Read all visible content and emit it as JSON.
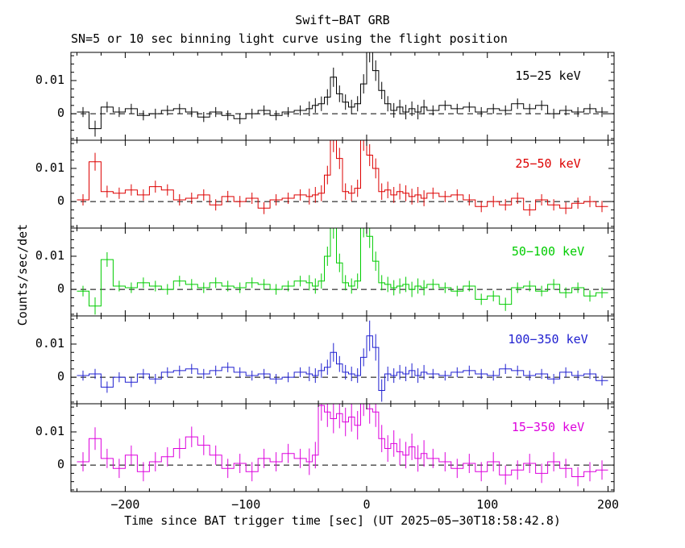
{
  "chart_data": {
    "type": "line",
    "style": "step-histogram-light-curve-with-error-bars",
    "title": "Swift−BAT GRB",
    "subtitle": "SN=5 or 10 sec binning light curve using the flight position",
    "xlabel": "Time since BAT trigger time [sec] (UT 2025−05−30T18:58:42.8)",
    "ylabel": "Counts/sec/det",
    "xlim": [
      -245,
      205
    ],
    "ylim": [
      -0.008,
      0.0185
    ],
    "x_ticks": [
      -200,
      -100,
      0,
      100,
      200
    ],
    "x_minor_step": 20,
    "y_ticks": [
      0,
      0.01
    ],
    "y_tick_labels": [
      "0",
      "0.01"
    ],
    "y_minor_step": 0.0025,
    "y_scale": 0.001,
    "zero_line": {
      "value": 0,
      "style": "dashed",
      "color": "#000000"
    },
    "bin_edges_sec": [
      -240,
      -230,
      -220,
      -210,
      -200,
      -190,
      -180,
      -170,
      -160,
      -150,
      -140,
      -130,
      -120,
      -110,
      -100,
      -90,
      -80,
      -70,
      -60,
      -50,
      -45,
      -40,
      -35,
      -30,
      -25,
      -20,
      -15,
      -10,
      -5,
      0,
      5,
      10,
      15,
      20,
      25,
      30,
      35,
      40,
      45,
      50,
      60,
      70,
      80,
      90,
      100,
      110,
      120,
      130,
      140,
      150,
      160,
      170,
      180,
      190,
      200
    ],
    "panels": [
      {
        "label": "15−25 keV",
        "color": "#000000",
        "rate_milli": [
          0.5,
          -4.5,
          2,
          0.5,
          1.5,
          -0.5,
          0,
          1,
          1.5,
          0.5,
          -1,
          0.5,
          -0.5,
          -1.5,
          0,
          1,
          -0.5,
          0.5,
          1,
          1.5,
          2.5,
          3,
          5,
          11,
          6,
          3.5,
          2,
          3,
          9,
          19,
          13,
          7,
          3,
          1,
          2,
          0.5,
          1.5,
          0.5,
          2,
          1,
          2.5,
          1.5,
          2,
          0.5,
          1.5,
          1,
          3,
          1.5,
          2.5,
          0,
          1,
          0.5,
          1.5,
          0.5
        ],
        "err_milli": [
          1.5,
          2.4,
          1.6,
          1.5,
          1.5,
          1.5,
          1.5,
          1.5,
          1.5,
          1.5,
          1.5,
          1.5,
          1.5,
          1.6,
          1.5,
          1.5,
          1.5,
          1.5,
          1.5,
          2.2,
          2.2,
          2.2,
          2.4,
          2.9,
          2.5,
          2.3,
          2.2,
          2.3,
          2.9,
          3.5,
          3.1,
          2.6,
          2.3,
          2.2,
          2.2,
          2.2,
          2.2,
          2.2,
          2.2,
          1.5,
          1.5,
          1.5,
          1.5,
          1.5,
          1.5,
          1.5,
          1.6,
          1.5,
          1.5,
          1.5,
          1.5,
          1.5,
          1.5,
          1.5
        ]
      },
      {
        "label": "25−50 keV",
        "color": "#dd0000",
        "rate_milli": [
          0.5,
          12,
          3,
          2.5,
          3.5,
          2,
          4.5,
          3.5,
          0.5,
          1,
          2,
          -1,
          1.5,
          0,
          1,
          -2,
          0.5,
          1,
          2,
          1.5,
          2,
          2.5,
          8,
          18.5,
          13,
          3,
          2.5,
          4,
          19,
          14,
          10,
          3,
          3.5,
          2,
          3,
          2.5,
          1.5,
          2,
          1,
          2.5,
          1.5,
          2,
          0.5,
          -1.5,
          0,
          -1,
          1,
          -2.5,
          0.5,
          -1,
          -2,
          -0.5,
          0,
          -1.5
        ],
        "err_milli": [
          1.7,
          2.7,
          1.8,
          1.7,
          1.7,
          1.7,
          1.8,
          1.7,
          1.7,
          1.7,
          1.7,
          1.7,
          1.7,
          1.7,
          1.7,
          1.8,
          1.7,
          1.7,
          1.7,
          2.4,
          2.4,
          2.4,
          2.8,
          3.6,
          3.2,
          2.5,
          2.4,
          2.6,
          3.7,
          3.3,
          3.0,
          2.5,
          2.5,
          2.4,
          2.4,
          2.4,
          2.4,
          2.4,
          2.4,
          1.7,
          1.7,
          1.7,
          1.7,
          1.7,
          1.7,
          1.7,
          1.7,
          1.8,
          1.7,
          1.7,
          1.8,
          1.7,
          1.7,
          1.7
        ]
      },
      {
        "label": "50−100 keV",
        "color": "#00cc00",
        "rate_milli": [
          -0.5,
          -5,
          9,
          1,
          0.5,
          2,
          1,
          0,
          2.5,
          1.5,
          0.5,
          2,
          1,
          0.5,
          2,
          1.5,
          0,
          1,
          2.5,
          2,
          1,
          2.5,
          10,
          19,
          8,
          2,
          1,
          2.5,
          19.5,
          16,
          8.5,
          2,
          1.5,
          0.5,
          1,
          1.5,
          0,
          1,
          0.5,
          1.5,
          0.5,
          -0.5,
          1,
          -3,
          -2,
          -4.5,
          0.5,
          1,
          -0.5,
          1.5,
          -1,
          0.5,
          -2,
          -1
        ],
        "err_milli": [
          1.6,
          2.6,
          2.2,
          1.6,
          1.6,
          1.6,
          1.6,
          1.6,
          1.6,
          1.6,
          1.6,
          1.6,
          1.6,
          1.6,
          1.6,
          1.6,
          1.6,
          1.6,
          1.6,
          2.3,
          2.3,
          2.3,
          2.9,
          3.7,
          2.8,
          2.3,
          2.3,
          2.3,
          3.8,
          3.5,
          2.9,
          2.3,
          2.3,
          2.3,
          2.3,
          2.3,
          2.3,
          2.3,
          2.3,
          1.6,
          1.6,
          1.6,
          1.6,
          1.7,
          1.6,
          2.0,
          1.6,
          1.6,
          1.6,
          1.6,
          1.6,
          1.6,
          1.7,
          1.6
        ]
      },
      {
        "label": "100−350 keV",
        "color": "#2020d0",
        "rate_milli": [
          0.5,
          1,
          -3,
          0,
          -1.5,
          1,
          -0.5,
          1.5,
          2,
          2.5,
          1,
          2,
          3,
          1.5,
          0.5,
          1,
          -0.5,
          0,
          1.5,
          1,
          0.5,
          2,
          3,
          7.5,
          4,
          1.5,
          1,
          0.5,
          6,
          12.5,
          9,
          -4,
          1,
          0.5,
          1.5,
          1,
          2,
          0.5,
          1.5,
          1,
          0.5,
          1.5,
          2,
          1,
          0.5,
          2.5,
          2,
          0.5,
          1,
          -0.5,
          1.5,
          0.5,
          1,
          -1
        ],
        "err_milli": [
          1.5,
          1.5,
          1.7,
          1.5,
          1.5,
          1.5,
          1.5,
          1.5,
          1.5,
          1.5,
          1.5,
          1.5,
          1.5,
          1.5,
          1.5,
          1.5,
          1.5,
          1.5,
          1.5,
          2.2,
          2.2,
          2.2,
          2.3,
          2.8,
          2.4,
          2.2,
          2.2,
          2.2,
          2.7,
          4.6,
          4.0,
          3.4,
          2.2,
          2.2,
          2.2,
          2.2,
          2.2,
          2.2,
          2.2,
          1.5,
          1.5,
          1.5,
          1.5,
          1.5,
          1.5,
          1.5,
          1.5,
          1.5,
          1.5,
          1.5,
          1.5,
          1.5,
          1.5,
          1.5
        ]
      },
      {
        "label": "15−350 keV",
        "color": "#dd00dd",
        "rate_milli": [
          1,
          8,
          2,
          -1,
          3,
          -2,
          1,
          2.5,
          5,
          8.5,
          6,
          3,
          -1,
          0.5,
          -2,
          2,
          1,
          3.5,
          2,
          1,
          3,
          18,
          16,
          14,
          15.5,
          13,
          14.5,
          12,
          19.5,
          17,
          16,
          8,
          5,
          6.5,
          4,
          3,
          5.5,
          2,
          3.5,
          2,
          1,
          -1,
          0.5,
          -2,
          1,
          -3,
          -1.5,
          0.5,
          -2.5,
          1,
          -1,
          -3.5,
          -2,
          -1.5
        ],
        "err_milli": [
          2.9,
          3.4,
          2.9,
          2.9,
          2.9,
          2.9,
          2.9,
          2.9,
          3.0,
          3.1,
          3.0,
          2.9,
          2.9,
          2.9,
          2.9,
          2.9,
          2.9,
          2.9,
          2.9,
          4.0,
          4.0,
          4.6,
          4.5,
          4.4,
          4.4,
          4.3,
          4.4,
          4.3,
          4.7,
          4.5,
          4.5,
          4.1,
          4.0,
          4.0,
          4.0,
          4.0,
          4.0,
          4.0,
          4.0,
          2.9,
          2.9,
          2.9,
          2.9,
          2.9,
          2.9,
          2.9,
          2.9,
          2.9,
          2.9,
          2.9,
          2.9,
          2.9,
          2.9,
          2.9
        ]
      }
    ]
  }
}
